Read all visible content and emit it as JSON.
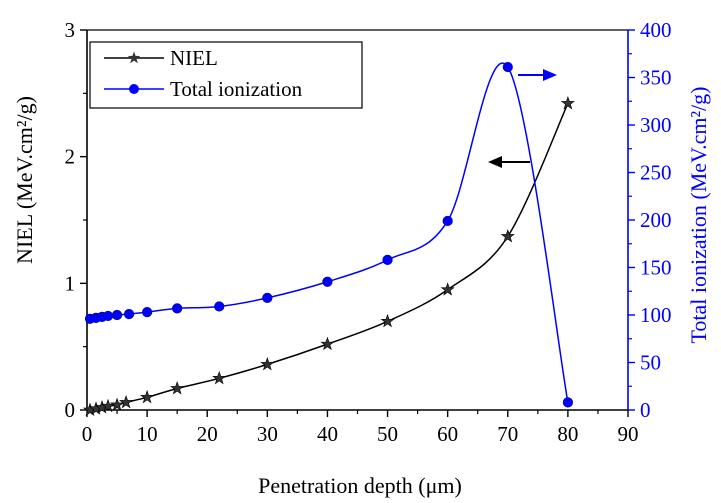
{
  "chart_data": {
    "type": "line",
    "title": "",
    "xlabel": "Penetration depth (μm)",
    "xlim": [
      0,
      90
    ],
    "xticks": [
      0,
      10,
      20,
      30,
      40,
      50,
      60,
      70,
      80,
      90
    ],
    "left_axis": {
      "label": "NIEL (MeV.cm²/g)",
      "ylim": [
        0,
        3
      ],
      "ticks": [
        0,
        1,
        2,
        3
      ],
      "color": "#000000"
    },
    "right_axis": {
      "label": "Total ionization (MeV.cm²/g)",
      "ylim": [
        0,
        400
      ],
      "ticks": [
        0,
        50,
        100,
        150,
        200,
        250,
        300,
        350,
        400
      ],
      "color": "#0000ff"
    },
    "grid": false,
    "legend_position": "top-left",
    "series": [
      {
        "name": "NIEL",
        "axis": "left",
        "marker": "star",
        "color": "#000000",
        "x": [
          0.5,
          1.5,
          2.5,
          3.5,
          5,
          6.5,
          10,
          15,
          22,
          30,
          40,
          50,
          60,
          70,
          80
        ],
        "y": [
          0.0,
          0.01,
          0.02,
          0.03,
          0.04,
          0.06,
          0.1,
          0.17,
          0.25,
          0.36,
          0.52,
          0.7,
          0.95,
          1.37,
          2.42
        ]
      },
      {
        "name": "Total ionization",
        "axis": "right",
        "marker": "circle",
        "color": "#0000ff",
        "x": [
          0.5,
          1.5,
          2.5,
          3.5,
          5,
          7,
          10,
          15,
          22,
          30,
          40,
          50,
          60,
          70,
          80
        ],
        "y": [
          96,
          97,
          98,
          99,
          100,
          101,
          103,
          107,
          109,
          118,
          135,
          158,
          199,
          361,
          8
        ]
      }
    ]
  }
}
